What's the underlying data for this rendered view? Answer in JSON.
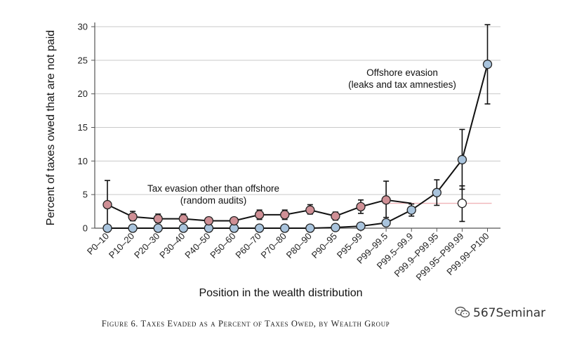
{
  "chart_data": {
    "type": "line",
    "title": "",
    "xlabel": "Position in the wealth distribution",
    "ylabel": "Percent of taxes owed that are not paid",
    "ylim": [
      0,
      30
    ],
    "yticks": [
      0,
      5,
      10,
      15,
      20,
      25,
      30
    ],
    "grid": true,
    "categories": [
      "P0–10",
      "P10–20",
      "P20–30",
      "P30–40",
      "P40–50",
      "P50–60",
      "P60–70",
      "P70–80",
      "P80–90",
      "P90–95",
      "P95–99",
      "P99–99.5",
      "P99.5–99.9",
      "P99.9–P99.95",
      "P99.95–P99.99",
      "P99.99–P100"
    ],
    "series": [
      {
        "name": "Tax evasion other than offshore (random audits)",
        "color": "#cf8f95",
        "values": [
          3.5,
          1.7,
          1.4,
          1.4,
          1.1,
          1.1,
          2.0,
          2.0,
          2.7,
          1.8,
          3.2,
          4.2,
          null,
          null,
          null,
          null
        ],
        "error_low": [
          0.0,
          1.1,
          0.8,
          0.9,
          0.6,
          0.6,
          1.3,
          1.3,
          2.1,
          1.2,
          2.2,
          1.6,
          null,
          null,
          null,
          null
        ],
        "error_high": [
          7.1,
          2.5,
          2.1,
          2.1,
          1.6,
          1.5,
          2.7,
          2.7,
          3.5,
          2.4,
          4.2,
          7.0,
          null,
          null,
          null,
          null
        ],
        "tail_value": 3.7,
        "tail_line_color": "#f0b3b8",
        "tail_marker": {
          "category": "P99.95–P99.99",
          "value": 3.7,
          "error_low": 1.0,
          "error_high": 6.3,
          "color": "#ffffff"
        }
      },
      {
        "name": "Offshore evasion (leaks and tax amnesties)",
        "color": "#a9c4dd",
        "values": [
          0.0,
          0.0,
          0.0,
          0.0,
          0.0,
          0.0,
          0.0,
          0.0,
          0.0,
          0.1,
          0.3,
          0.8,
          2.7,
          5.3,
          10.2,
          24.4
        ],
        "error_low": [
          null,
          null,
          null,
          null,
          null,
          null,
          null,
          null,
          null,
          null,
          null,
          null,
          1.8,
          3.4,
          5.8,
          18.5
        ],
        "error_high": [
          null,
          null,
          null,
          null,
          null,
          null,
          null,
          null,
          null,
          null,
          null,
          null,
          3.6,
          7.2,
          14.7,
          30.3
        ]
      }
    ],
    "annotations": [
      {
        "lines": [
          "Offshore evasion",
          "(leaks and tax amnesties)"
        ]
      },
      {
        "lines": [
          "Tax evasion other than offshore",
          "(random audits)"
        ]
      }
    ]
  },
  "caption": "Figure 6. Taxes Evaded as a Percent of Taxes Owed, by Wealth Group",
  "watermark": "567Seminar"
}
